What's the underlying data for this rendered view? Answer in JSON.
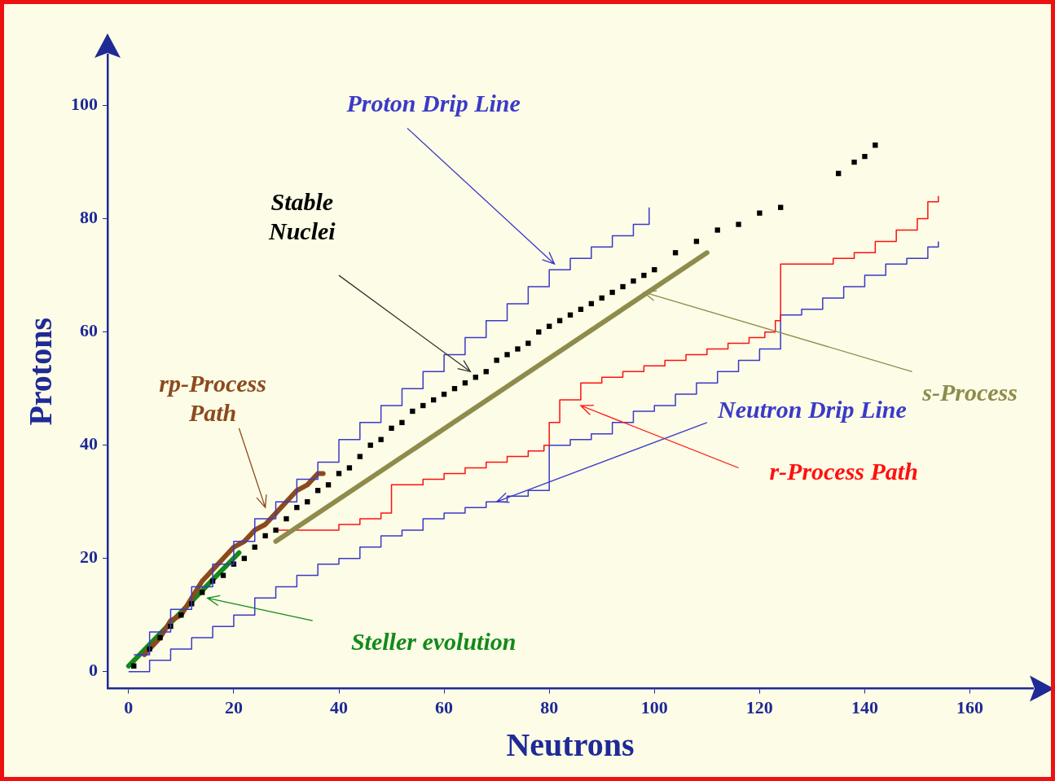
{
  "chart_data": {
    "type": "line",
    "xlabel": "Neutrons",
    "ylabel": "Protons",
    "xlim": [
      -4,
      172
    ],
    "ylim": [
      -3,
      109
    ],
    "xticks": [
      0,
      20,
      40,
      60,
      80,
      100,
      120,
      140,
      160
    ],
    "yticks": [
      0,
      20,
      40,
      60,
      80,
      100
    ],
    "grid": false,
    "legend": false,
    "series": [
      {
        "name": "Proton Drip Line",
        "type": "step",
        "color": "#3a3ac8",
        "x": [
          1,
          4,
          8,
          12,
          16,
          20,
          24,
          28,
          32,
          36,
          40,
          44,
          48,
          52,
          56,
          60,
          64,
          68,
          72,
          76,
          80,
          84,
          88,
          92,
          96,
          99,
          99
        ],
        "values": [
          3,
          7,
          11,
          15,
          19,
          23,
          27,
          30,
          34,
          37,
          41,
          44,
          47,
          50,
          53,
          56,
          59,
          62,
          65,
          68,
          71,
          73,
          75,
          77,
          79,
          81,
          82
        ]
      },
      {
        "name": "Stable Nuclei",
        "type": "scatter",
        "marker": "square",
        "color": "#000000",
        "x": [
          1,
          4,
          6,
          8,
          10,
          12,
          14,
          16,
          18,
          20,
          22,
          24,
          26,
          28,
          30,
          32,
          34,
          36,
          38,
          40,
          42,
          44,
          46,
          48,
          50,
          52,
          54,
          56,
          58,
          60,
          62,
          64,
          66,
          68,
          70,
          72,
          74,
          76,
          78,
          80,
          82,
          84,
          86,
          88,
          90,
          92,
          94,
          96,
          98,
          100,
          104,
          108,
          112,
          116,
          120,
          124,
          135,
          138,
          140,
          142
        ],
        "values": [
          1,
          4,
          6,
          8,
          10,
          12,
          14,
          16,
          17,
          19,
          20,
          22,
          24,
          25,
          27,
          29,
          30,
          32,
          33,
          35,
          36,
          38,
          40,
          41,
          43,
          44,
          46,
          47,
          48,
          49,
          50,
          51,
          52,
          53,
          55,
          56,
          57,
          58,
          60,
          61,
          62,
          63,
          64,
          65,
          66,
          67,
          68,
          69,
          70,
          71,
          74,
          76,
          78,
          79,
          81,
          82,
          88,
          90,
          91,
          93
        ]
      },
      {
        "name": "rp-Process Path",
        "type": "line",
        "color": "#8b4a1e",
        "x": [
          3,
          6,
          8,
          10,
          12,
          14,
          16,
          18,
          20,
          22,
          24,
          26,
          28,
          30,
          32,
          34,
          36,
          37
        ],
        "values": [
          3,
          6,
          9,
          10,
          13,
          16,
          18,
          20,
          22,
          23,
          25,
          26,
          28,
          30,
          32,
          33,
          35,
          35
        ]
      },
      {
        "name": "s-Process",
        "type": "line",
        "color": "#8e8c4c",
        "x": [
          28,
          110
        ],
        "values": [
          23,
          74
        ]
      },
      {
        "name": "r-Process Path",
        "type": "step",
        "color": "#ff1010",
        "x": [
          28,
          36,
          40,
          44,
          48,
          50,
          50,
          56,
          60,
          64,
          68,
          72,
          76,
          79,
          80,
          82,
          86,
          90,
          94,
          98,
          102,
          106,
          110,
          114,
          118,
          121,
          123,
          124,
          124,
          130,
          134,
          138,
          142,
          146,
          150,
          152,
          154
        ],
        "values": [
          25,
          25,
          26,
          27,
          28,
          29,
          33,
          34,
          35,
          36,
          37,
          38,
          39,
          40,
          44,
          48,
          51,
          52,
          53,
          54,
          55,
          56,
          57,
          58,
          59,
          60,
          62,
          66,
          72,
          72,
          73,
          74,
          76,
          78,
          80,
          83,
          84
        ]
      },
      {
        "name": "Neutron Drip Line",
        "type": "step",
        "color": "#3a3ac8",
        "x": [
          0,
          4,
          8,
          12,
          16,
          20,
          24,
          28,
          32,
          36,
          40,
          44,
          48,
          52,
          56,
          60,
          64,
          68,
          72,
          76,
          80,
          80,
          84,
          88,
          92,
          96,
          100,
          104,
          108,
          112,
          116,
          120,
          124,
          124,
          128,
          132,
          136,
          140,
          144,
          148,
          152,
          154
        ],
        "values": [
          0,
          2,
          4,
          6,
          8,
          10,
          13,
          15,
          17,
          19,
          20,
          22,
          24,
          25,
          27,
          28,
          29,
          30,
          31,
          32,
          35,
          40,
          41,
          42,
          44,
          46,
          47,
          49,
          51,
          53,
          55,
          57,
          58,
          63,
          64,
          66,
          68,
          70,
          72,
          73,
          75,
          76
        ]
      },
      {
        "name": "Steller evolution",
        "type": "line",
        "color": "#138a1c",
        "x": [
          0,
          21
        ],
        "values": [
          1,
          21
        ]
      }
    ]
  }
}
